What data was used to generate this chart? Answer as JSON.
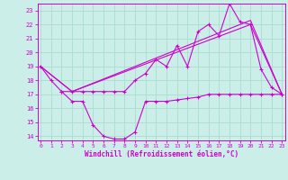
{
  "xlabel": "Windchill (Refroidissement éolien,°C)",
  "background_color": "#cceee8",
  "grid_color": "#aaddcc",
  "line_color": "#cc00cc",
  "x_ticks": [
    0,
    1,
    2,
    3,
    4,
    5,
    6,
    7,
    8,
    9,
    10,
    11,
    12,
    13,
    14,
    15,
    16,
    17,
    18,
    19,
    20,
    21,
    22,
    23
  ],
  "y_ticks": [
    14,
    15,
    16,
    17,
    18,
    19,
    20,
    21,
    22,
    23
  ],
  "xlim": [
    -0.3,
    23.3
  ],
  "ylim": [
    13.7,
    23.5
  ],
  "series1_x": [
    0,
    1,
    2,
    3,
    4,
    5,
    6,
    7,
    8,
    9,
    10,
    11,
    12,
    13,
    14,
    15,
    16,
    17,
    18,
    19,
    20,
    21,
    22,
    23
  ],
  "series1_y": [
    19,
    18,
    17.2,
    17.2,
    17.2,
    17.2,
    17.2,
    17.2,
    17.2,
    18.0,
    18.5,
    19.5,
    19.0,
    20.5,
    19.0,
    21.5,
    22.0,
    21.2,
    23.5,
    22.2,
    22.0,
    18.8,
    17.5,
    17.0
  ],
  "series2_x": [
    0,
    3,
    20,
    23
  ],
  "series2_y": [
    19,
    17.2,
    22.0,
    17.0
  ],
  "series3_x": [
    0,
    3,
    20,
    23
  ],
  "series3_y": [
    19,
    17.2,
    22.3,
    17.0
  ],
  "series4_x": [
    2,
    3,
    4,
    5,
    6,
    7,
    8,
    9,
    10,
    11,
    12,
    13,
    14,
    15,
    16,
    17,
    18,
    19,
    20,
    21,
    22,
    23
  ],
  "series4_y": [
    17.2,
    16.5,
    16.5,
    14.8,
    14.0,
    13.8,
    13.8,
    14.3,
    16.5,
    16.5,
    16.5,
    16.6,
    16.7,
    16.8,
    17.0,
    17.0,
    17.0,
    17.0,
    17.0,
    17.0,
    17.0,
    17.0
  ]
}
